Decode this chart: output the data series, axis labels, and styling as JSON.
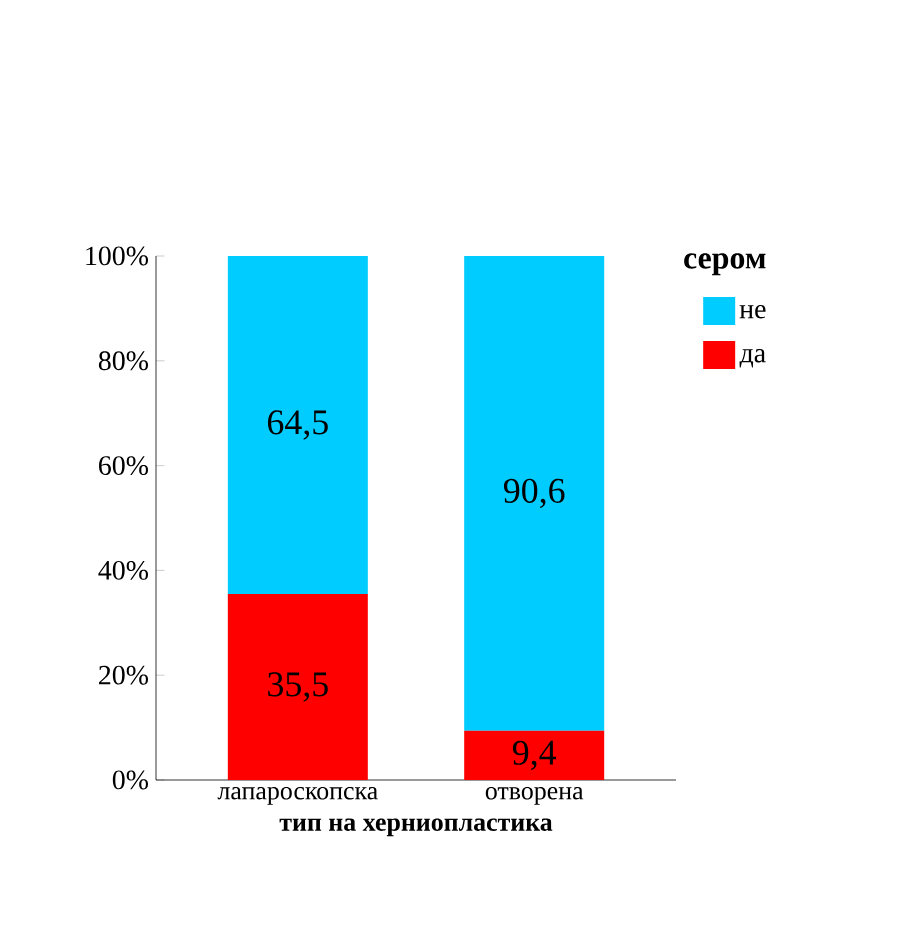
{
  "chart_data": {
    "type": "bar",
    "stacked": true,
    "legend_title": "сером",
    "xlabel": "тип на херниопластика",
    "categories": [
      "лапароскопска",
      "отворена"
    ],
    "series": [
      {
        "name": "да",
        "color": "#ff0000",
        "values": [
          35.5,
          9.4
        ],
        "value_labels": [
          "35,5",
          "9,4"
        ]
      },
      {
        "name": "не",
        "color": "#00ccff",
        "values": [
          64.5,
          90.6
        ],
        "value_labels": [
          "64,5",
          "90,6"
        ]
      }
    ],
    "ylim": [
      0,
      100
    ],
    "yticks": [
      {
        "value": 0,
        "label": "0%"
      },
      {
        "value": 20,
        "label": "20%"
      },
      {
        "value": 40,
        "label": "40%"
      },
      {
        "value": 60,
        "label": "60%"
      },
      {
        "value": 80,
        "label": "80%"
      },
      {
        "value": 100,
        "label": "100%"
      }
    ],
    "legend": "right"
  }
}
